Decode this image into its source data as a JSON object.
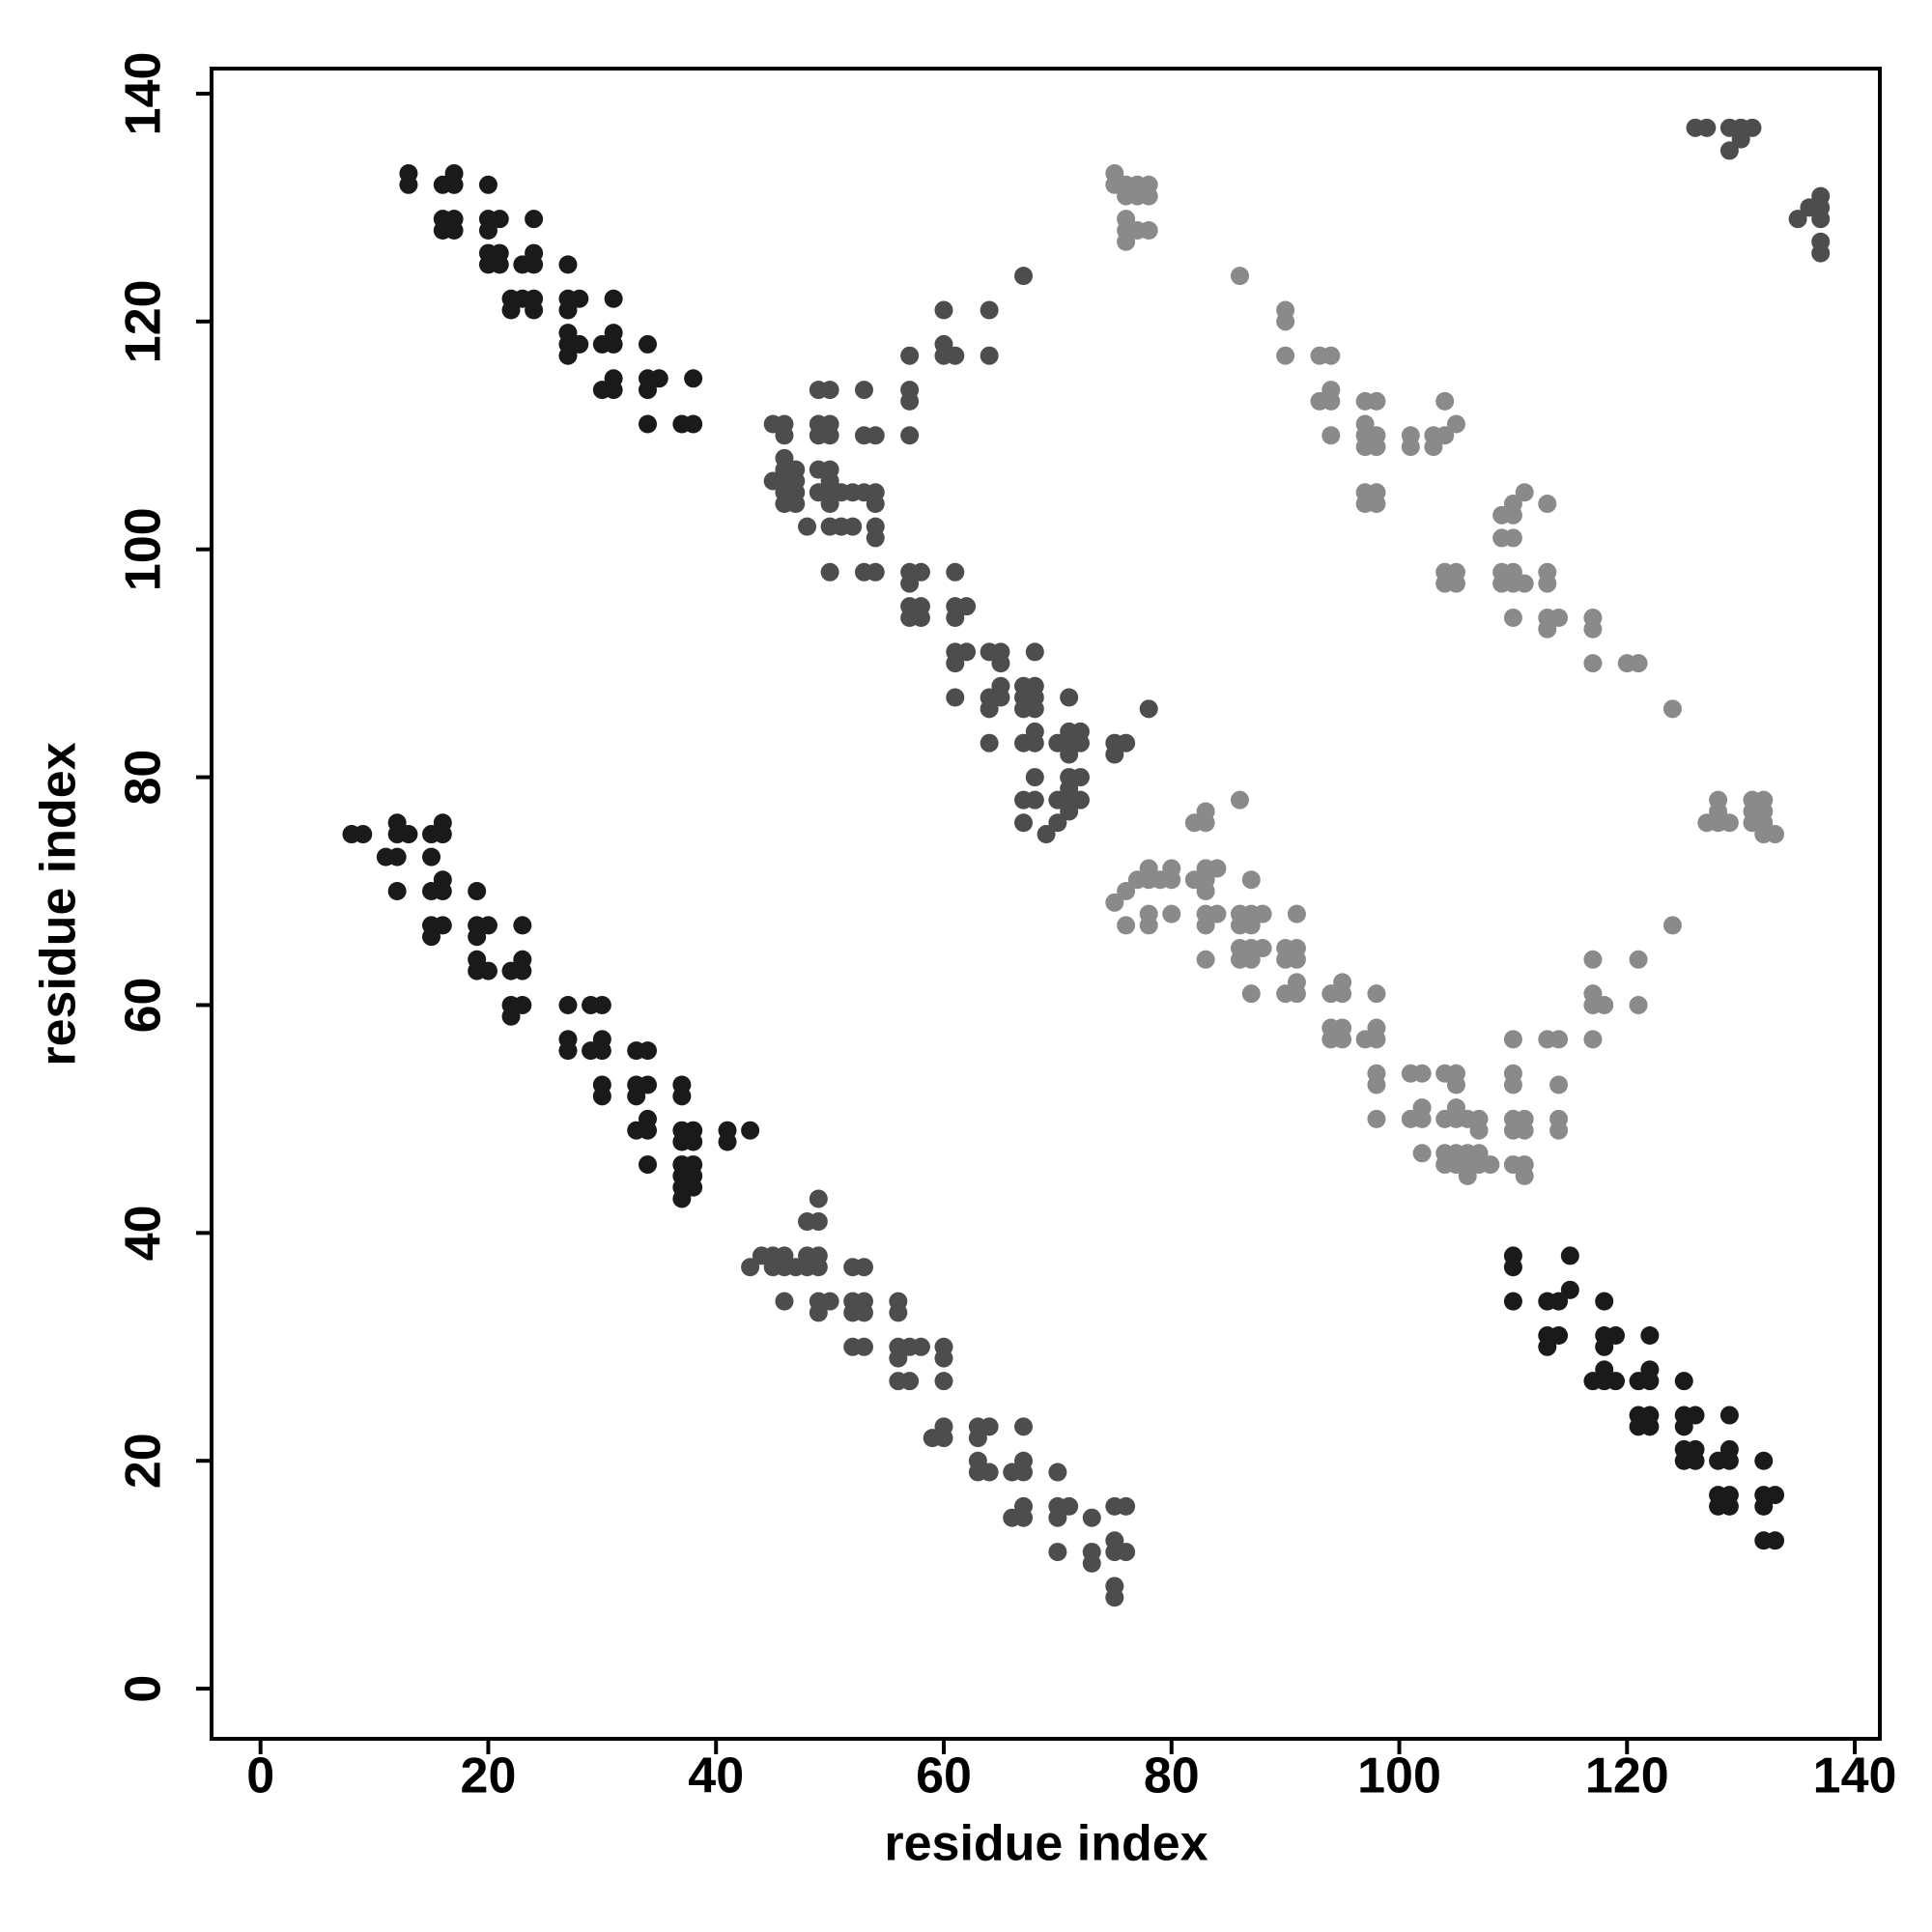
{
  "chart_data": {
    "type": "scatter",
    "xlabel": "residue index",
    "ylabel": "residue index",
    "xlim": [
      -4.3,
      142.2
    ],
    "ylim": [
      -4.4,
      142.2
    ],
    "xticks": [
      0,
      20,
      40,
      60,
      80,
      100,
      120,
      140
    ],
    "yticks": [
      0,
      20,
      40,
      60,
      80,
      100,
      120,
      140
    ],
    "grid": false,
    "series": [
      {
        "color": "#1a1a1a",
        "x": [
          13,
          13,
          16,
          17,
          17,
          20,
          16,
          16,
          17,
          17,
          20,
          21,
          20,
          20,
          20,
          21,
          21,
          23,
          24,
          24,
          24,
          22,
          22,
          23,
          24,
          24,
          27,
          27,
          27,
          28,
          27,
          27,
          27,
          28,
          30,
          31,
          31,
          31,
          30,
          31,
          31,
          34,
          34,
          34,
          35,
          34,
          37,
          38,
          38,
          8,
          9,
          12,
          13,
          12,
          11,
          12,
          15,
          16,
          16,
          15,
          12,
          15,
          16,
          16,
          15,
          16,
          15,
          19,
          19,
          20,
          19,
          19,
          19,
          20,
          22,
          23,
          23,
          23,
          22,
          23,
          22,
          27,
          29,
          30,
          27,
          27,
          29,
          30,
          30,
          30,
          30,
          33,
          34,
          33,
          34,
          33,
          33,
          34,
          34,
          34,
          37,
          37,
          37,
          38,
          37,
          38,
          37,
          38,
          37,
          38,
          37,
          38,
          37,
          41,
          41,
          43,
          110,
          110,
          110,
          113,
          114,
          113,
          114,
          113,
          115,
          115,
          117,
          118,
          118,
          118,
          119,
          118,
          118,
          119,
          121,
          122,
          121,
          122,
          121,
          122,
          122,
          122,
          125,
          125,
          126,
          125,
          125,
          126,
          125,
          126,
          128,
          129,
          129,
          129,
          128,
          129,
          128,
          129,
          132,
          132,
          133,
          132,
          132,
          133
        ],
        "values": [
          133,
          132,
          132,
          133,
          132,
          132,
          129,
          128,
          129,
          128,
          129,
          129,
          128,
          126,
          125,
          126,
          125,
          125,
          125,
          126,
          129,
          122,
          121,
          122,
          122,
          121,
          125,
          122,
          121,
          122,
          119,
          118,
          117,
          118,
          118,
          118,
          119,
          122,
          114,
          114,
          115,
          118,
          115,
          114,
          115,
          111,
          111,
          111,
          115,
          75,
          75,
          75,
          75,
          76,
          73,
          73,
          75,
          75,
          76,
          73,
          70,
          70,
          70,
          71,
          67,
          67,
          66,
          70,
          67,
          67,
          66,
          64,
          63,
          63,
          63,
          63,
          64,
          67,
          60,
          60,
          59,
          60,
          60,
          60,
          57,
          56,
          56,
          56,
          57,
          53,
          52,
          56,
          56,
          53,
          53,
          52,
          49,
          49,
          50,
          46,
          53,
          52,
          49,
          49,
          48,
          48,
          46,
          46,
          45,
          45,
          44,
          44,
          43,
          49,
          48,
          49,
          38,
          37,
          34,
          34,
          34,
          31,
          31,
          30,
          35,
          38,
          27,
          27,
          28,
          31,
          31,
          30,
          34,
          27,
          27,
          27,
          24,
          24,
          23,
          23,
          28,
          31,
          27,
          24,
          24,
          23,
          21,
          21,
          20,
          20,
          20,
          20,
          21,
          24,
          17,
          17,
          16,
          16,
          20,
          17,
          17,
          16,
          13,
          13
        ]
      },
      {
        "color": "#4d4d4d",
        "x": [
          45,
          46,
          46,
          45,
          46,
          46,
          46,
          46,
          46,
          47,
          47,
          47,
          47,
          48,
          49,
          50,
          49,
          50,
          49,
          50,
          49,
          50,
          50,
          49,
          50,
          51,
          52,
          50,
          50,
          51,
          52,
          50,
          53,
          53,
          54,
          53,
          54,
          54,
          54,
          54,
          53,
          54,
          57,
          57,
          57,
          57,
          60,
          60,
          60,
          61,
          64,
          64,
          67,
          57,
          58,
          57,
          57,
          58,
          57,
          58,
          61,
          61,
          62,
          61,
          61,
          62,
          61,
          61,
          64,
          65,
          65,
          65,
          65,
          64,
          64,
          64,
          67,
          68,
          67,
          68,
          67,
          68,
          68,
          67,
          68,
          68,
          70,
          71,
          72,
          71,
          72,
          71,
          68,
          71,
          72,
          71,
          71,
          72,
          70,
          71,
          67,
          68,
          67,
          69,
          70,
          71,
          75,
          75,
          76,
          78,
          43,
          44,
          45,
          45,
          46,
          46,
          47,
          46,
          48,
          49,
          48,
          49,
          48,
          49,
          49,
          49,
          50,
          49,
          52,
          53,
          52,
          53,
          52,
          53,
          52,
          53,
          56,
          56,
          56,
          57,
          58,
          56,
          56,
          57,
          60,
          60,
          60,
          59,
          60,
          60,
          63,
          64,
          63,
          63,
          63,
          64,
          66,
          67,
          67,
          67,
          66,
          67,
          67,
          70,
          70,
          71,
          70,
          70,
          73,
          73,
          73,
          75,
          76,
          75,
          75,
          76,
          75,
          75,
          126,
          127,
          129,
          130,
          131,
          129,
          130,
          135,
          136,
          137,
          137,
          137,
          137,
          137
        ],
        "values": [
          111,
          111,
          110,
          106,
          108,
          107,
          106,
          105,
          104,
          107,
          106,
          105,
          104,
          102,
          114,
          114,
          111,
          111,
          110,
          110,
          107,
          107,
          106,
          105,
          105,
          105,
          105,
          104,
          102,
          102,
          102,
          98,
          114,
          110,
          110,
          105,
          105,
          104,
          102,
          101,
          98,
          98,
          117,
          114,
          113,
          110,
          121,
          118,
          117,
          117,
          121,
          117,
          124,
          98,
          98,
          97,
          95,
          95,
          94,
          94,
          98,
          95,
          95,
          94,
          91,
          91,
          90,
          87,
          91,
          91,
          90,
          88,
          87,
          87,
          86,
          83,
          88,
          88,
          87,
          87,
          86,
          86,
          91,
          83,
          84,
          83,
          83,
          84,
          84,
          83,
          83,
          82,
          80,
          80,
          80,
          79,
          78,
          78,
          78,
          77,
          78,
          78,
          76,
          75,
          76,
          87,
          83,
          82,
          83,
          86,
          37,
          38,
          38,
          37,
          38,
          37,
          37,
          34,
          41,
          41,
          38,
          38,
          37,
          37,
          43,
          34,
          34,
          33,
          37,
          37,
          34,
          34,
          33,
          33,
          30,
          30,
          34,
          33,
          30,
          30,
          30,
          29,
          27,
          27,
          30,
          29,
          27,
          22,
          23,
          22,
          23,
          23,
          22,
          20,
          19,
          19,
          19,
          19,
          20,
          23,
          15,
          16,
          15,
          19,
          16,
          16,
          15,
          12,
          15,
          12,
          11,
          16,
          16,
          13,
          12,
          12,
          9,
          8,
          137,
          137,
          137,
          137,
          137,
          135,
          136,
          129,
          130,
          130,
          131,
          129,
          127,
          126
        ]
      },
      {
        "color": "#8a8a8a",
        "x": [
          75,
          75,
          76,
          77,
          78,
          76,
          77,
          78,
          76,
          76,
          76,
          77,
          78,
          86,
          90,
          90,
          90,
          93,
          94,
          93,
          94,
          94,
          94,
          97,
          98,
          97,
          98,
          97,
          98,
          97,
          97,
          98,
          97,
          98,
          101,
          101,
          103,
          103,
          104,
          104,
          105,
          104,
          105,
          104,
          105,
          109,
          110,
          109,
          110,
          110,
          111,
          109,
          110,
          109,
          110,
          111,
          110,
          113,
          113,
          113,
          113,
          114,
          113,
          117,
          117,
          117,
          120,
          121,
          124,
          75,
          76,
          77,
          78,
          79,
          80,
          80,
          78,
          76,
          78,
          78,
          80,
          82,
          83,
          83,
          84,
          82,
          83,
          83,
          86,
          83,
          83,
          84,
          83,
          83,
          86,
          87,
          86,
          87,
          86,
          87,
          88,
          86,
          87,
          87,
          87,
          88,
          90,
          91,
          90,
          91,
          91,
          90,
          91,
          91,
          94,
          95,
          95,
          94,
          95,
          94,
          95,
          97,
          98,
          98,
          98,
          98,
          98,
          98,
          101,
          102,
          101,
          102,
          102,
          102,
          104,
          105,
          104,
          105,
          105,
          106,
          107,
          104,
          105,
          106,
          107,
          104,
          105,
          106,
          107,
          108,
          106,
          107,
          105,
          110,
          110,
          110,
          110,
          111,
          110,
          111,
          110,
          111,
          111,
          113,
          114,
          114,
          114,
          114,
          117,
          117,
          117,
          118,
          117,
          121,
          121,
          124,
          127,
          128,
          128,
          128,
          129,
          131,
          132,
          131,
          132,
          131,
          132,
          132,
          133
        ],
        "values": [
          133,
          132,
          132,
          132,
          132,
          131,
          131,
          131,
          129,
          128,
          127,
          128,
          128,
          124,
          121,
          120,
          117,
          117,
          117,
          113,
          114,
          113,
          110,
          113,
          113,
          111,
          110,
          110,
          109,
          109,
          105,
          105,
          104,
          104,
          110,
          109,
          109,
          110,
          110,
          113,
          111,
          98,
          98,
          97,
          97,
          103,
          103,
          101,
          101,
          104,
          105,
          98,
          98,
          97,
          97,
          97,
          94,
          104,
          98,
          97,
          94,
          94,
          93,
          94,
          93,
          90,
          90,
          90,
          86,
          69,
          70,
          71,
          71,
          71,
          71,
          72,
          72,
          67,
          68,
          67,
          68,
          71,
          71,
          72,
          72,
          76,
          76,
          77,
          78,
          70,
          68,
          68,
          67,
          64,
          68,
          68,
          67,
          67,
          65,
          65,
          65,
          64,
          64,
          61,
          71,
          68,
          65,
          65,
          64,
          64,
          62,
          61,
          61,
          68,
          61,
          62,
          61,
          58,
          58,
          57,
          57,
          57,
          58,
          57,
          61,
          54,
          53,
          50,
          54,
          54,
          50,
          51,
          50,
          47,
          54,
          54,
          50,
          51,
          50,
          50,
          50,
          47,
          47,
          47,
          47,
          46,
          46,
          46,
          46,
          46,
          45,
          49,
          53,
          57,
          54,
          53,
          50,
          50,
          49,
          49,
          46,
          46,
          45,
          57,
          57,
          53,
          50,
          49,
          64,
          61,
          60,
          60,
          57,
          64,
          60,
          67,
          76,
          78,
          77,
          76,
          76,
          78,
          78,
          77,
          77,
          76,
          76,
          75,
          75
        ]
      }
    ]
  }
}
